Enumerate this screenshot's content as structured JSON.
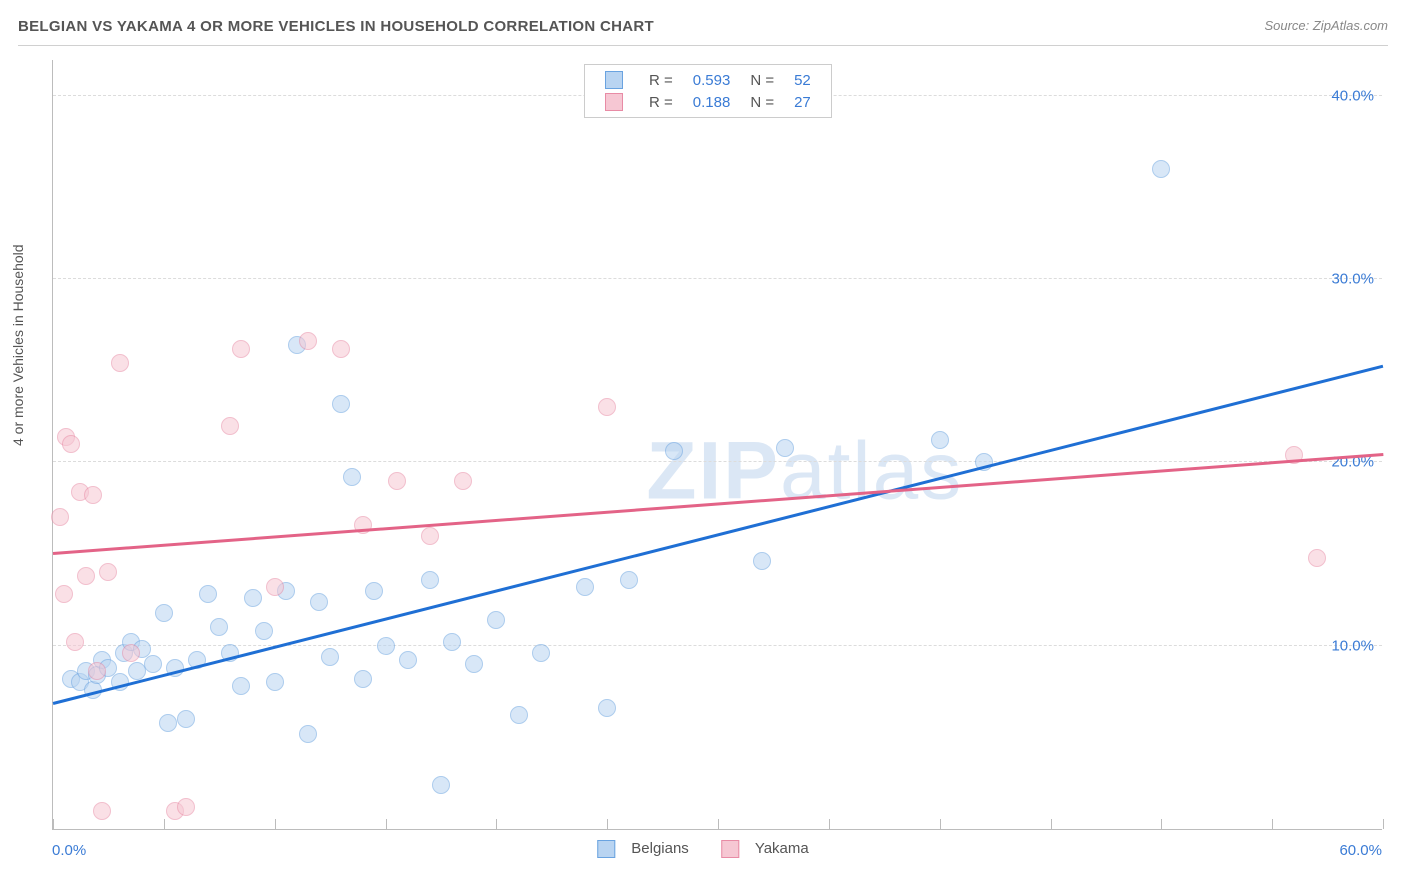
{
  "header": {
    "title": "BELGIAN VS YAKAMA 4 OR MORE VEHICLES IN HOUSEHOLD CORRELATION CHART",
    "source": "Source: ZipAtlas.com"
  },
  "ylabel": "4 or more Vehicles in Household",
  "chart": {
    "type": "scatter",
    "xlim": [
      0,
      60
    ],
    "ylim": [
      0,
      42
    ],
    "xticks": [
      0,
      5,
      10,
      15,
      20,
      25,
      30,
      35,
      40,
      45,
      50,
      55,
      60
    ],
    "xtick_labels": {
      "0": "0.0%",
      "60": "60.0%"
    },
    "yticks": [
      10,
      20,
      30,
      40
    ],
    "ytick_labels": {
      "10": "10.0%",
      "20": "20.0%",
      "30": "30.0%",
      "40": "40.0%"
    },
    "grid_color": "#dcdcdc",
    "axis_color": "#bcbcbc",
    "background_color": "#ffffff",
    "marker_radius": 9,
    "marker_opacity": 0.55,
    "series": [
      {
        "name": "Belgians",
        "fill": "#b9d4f1",
        "stroke": "#6aa3e0",
        "line_color": "#1f6fd4",
        "R": "0.593",
        "N": "52",
        "trend": {
          "x1": 0,
          "y1": 6.8,
          "x2": 60,
          "y2": 25.2
        },
        "points": [
          [
            0.8,
            8.2
          ],
          [
            1.2,
            8.0
          ],
          [
            1.5,
            8.6
          ],
          [
            1.8,
            7.6
          ],
          [
            2.0,
            8.4
          ],
          [
            2.2,
            9.2
          ],
          [
            2.5,
            8.8
          ],
          [
            3.0,
            8.0
          ],
          [
            3.2,
            9.6
          ],
          [
            3.5,
            10.2
          ],
          [
            3.8,
            8.6
          ],
          [
            4.0,
            9.8
          ],
          [
            4.5,
            9.0
          ],
          [
            5.0,
            11.8
          ],
          [
            5.2,
            5.8
          ],
          [
            5.5,
            8.8
          ],
          [
            6.0,
            6.0
          ],
          [
            6.5,
            9.2
          ],
          [
            7.0,
            12.8
          ],
          [
            7.5,
            11.0
          ],
          [
            8.0,
            9.6
          ],
          [
            8.5,
            7.8
          ],
          [
            9.0,
            12.6
          ],
          [
            9.5,
            10.8
          ],
          [
            10.0,
            8.0
          ],
          [
            10.5,
            13.0
          ],
          [
            11.0,
            26.4
          ],
          [
            11.5,
            5.2
          ],
          [
            12.0,
            12.4
          ],
          [
            12.5,
            9.4
          ],
          [
            13.0,
            23.2
          ],
          [
            13.5,
            19.2
          ],
          [
            14.0,
            8.2
          ],
          [
            14.5,
            13.0
          ],
          [
            15.0,
            10.0
          ],
          [
            16.0,
            9.2
          ],
          [
            17.0,
            13.6
          ],
          [
            17.5,
            2.4
          ],
          [
            18.0,
            10.2
          ],
          [
            19.0,
            9.0
          ],
          [
            20.0,
            11.4
          ],
          [
            21.0,
            6.2
          ],
          [
            22.0,
            9.6
          ],
          [
            24.0,
            13.2
          ],
          [
            25.0,
            6.6
          ],
          [
            26.0,
            13.6
          ],
          [
            28.0,
            20.6
          ],
          [
            32.0,
            14.6
          ],
          [
            33.0,
            20.8
          ],
          [
            40.0,
            21.2
          ],
          [
            42.0,
            20.0
          ],
          [
            50.0,
            36.0
          ]
        ]
      },
      {
        "name": "Yakama",
        "fill": "#f6c7d3",
        "stroke": "#e88ba5",
        "line_color": "#e36387",
        "R": "0.188",
        "N": "27",
        "trend": {
          "x1": 0,
          "y1": 15.0,
          "x2": 60,
          "y2": 20.4
        },
        "points": [
          [
            0.3,
            17.0
          ],
          [
            0.5,
            12.8
          ],
          [
            0.6,
            21.4
          ],
          [
            0.8,
            21.0
          ],
          [
            1.0,
            10.2
          ],
          [
            1.2,
            18.4
          ],
          [
            1.5,
            13.8
          ],
          [
            1.8,
            18.2
          ],
          [
            2.0,
            8.6
          ],
          [
            2.2,
            1.0
          ],
          [
            2.5,
            14.0
          ],
          [
            3.0,
            25.4
          ],
          [
            3.5,
            9.6
          ],
          [
            5.5,
            1.0
          ],
          [
            6.0,
            1.2
          ],
          [
            8.0,
            22.0
          ],
          [
            8.5,
            26.2
          ],
          [
            10.0,
            13.2
          ],
          [
            11.5,
            26.6
          ],
          [
            13.0,
            26.2
          ],
          [
            14.0,
            16.6
          ],
          [
            15.5,
            19.0
          ],
          [
            17.0,
            16.0
          ],
          [
            18.5,
            19.0
          ],
          [
            25.0,
            23.0
          ],
          [
            56.0,
            20.4
          ],
          [
            57.0,
            14.8
          ]
        ]
      }
    ]
  },
  "legend_top": {
    "r_label": "R =",
    "n_label": "N ="
  },
  "legend_bottom": {
    "items": [
      "Belgians",
      "Yakama"
    ]
  },
  "watermark": {
    "text_bold": "ZIP",
    "text_light": "atlas",
    "color": "#dbe7f5"
  }
}
